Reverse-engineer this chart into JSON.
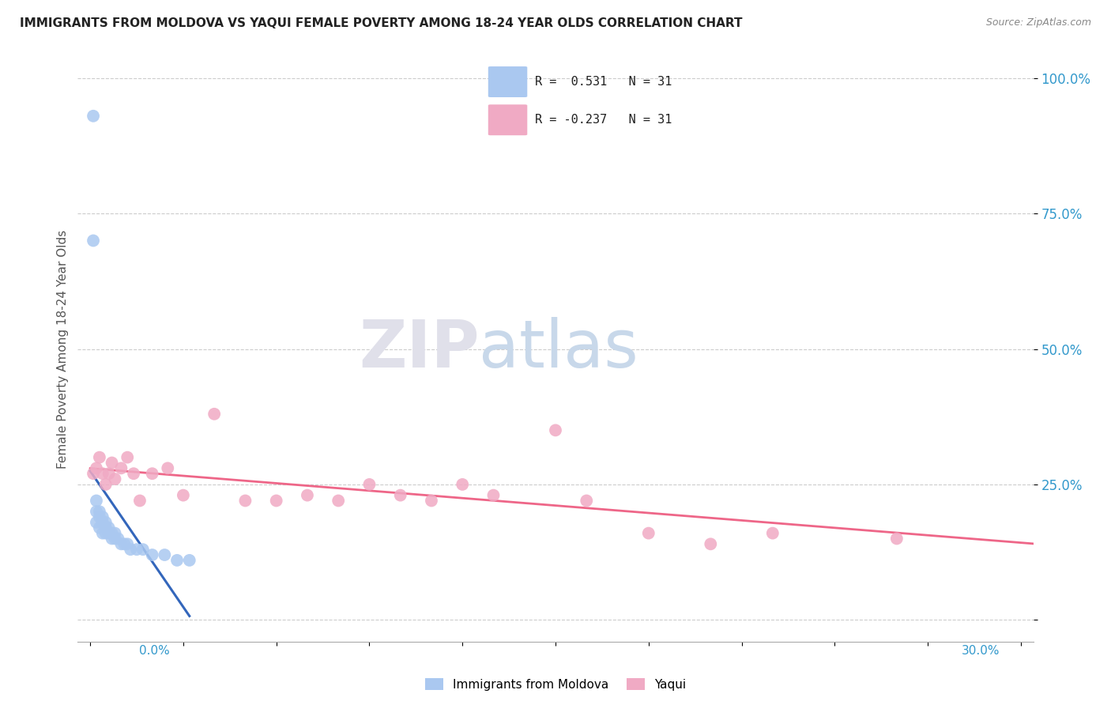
{
  "title": "IMMIGRANTS FROM MOLDOVA VS YAQUI FEMALE POVERTY AMONG 18-24 YEAR OLDS CORRELATION CHART",
  "source": "Source: ZipAtlas.com",
  "ylabel": "Female Poverty Among 18-24 Year Olds",
  "y_ticks": [
    0.0,
    0.25,
    0.5,
    0.75,
    1.0
  ],
  "y_tick_labels": [
    "",
    "25.0%",
    "50.0%",
    "75.0%",
    "100.0%"
  ],
  "legend_entry1": "R =  0.531   N = 31",
  "legend_entry2": "R = -0.237   N = 31",
  "legend_label1": "Immigrants from Moldova",
  "legend_label2": "Yaqui",
  "blue_color": "#aac8f0",
  "pink_color": "#f0aac4",
  "blue_line_color": "#3366bb",
  "pink_line_color": "#ee6688",
  "blue_scatter_x": [
    0.001,
    0.001,
    0.002,
    0.002,
    0.002,
    0.003,
    0.003,
    0.003,
    0.004,
    0.004,
    0.004,
    0.005,
    0.005,
    0.005,
    0.006,
    0.006,
    0.007,
    0.007,
    0.008,
    0.008,
    0.009,
    0.01,
    0.011,
    0.012,
    0.013,
    0.015,
    0.017,
    0.02,
    0.024,
    0.028,
    0.032
  ],
  "blue_scatter_y": [
    0.93,
    0.7,
    0.22,
    0.2,
    0.18,
    0.2,
    0.19,
    0.17,
    0.19,
    0.18,
    0.16,
    0.18,
    0.17,
    0.16,
    0.17,
    0.16,
    0.16,
    0.15,
    0.16,
    0.15,
    0.15,
    0.14,
    0.14,
    0.14,
    0.13,
    0.13,
    0.13,
    0.12,
    0.12,
    0.11,
    0.11
  ],
  "pink_scatter_x": [
    0.001,
    0.002,
    0.003,
    0.004,
    0.005,
    0.006,
    0.007,
    0.008,
    0.01,
    0.012,
    0.014,
    0.016,
    0.02,
    0.025,
    0.03,
    0.04,
    0.05,
    0.06,
    0.07,
    0.08,
    0.09,
    0.1,
    0.11,
    0.12,
    0.13,
    0.15,
    0.16,
    0.18,
    0.2,
    0.22,
    0.26
  ],
  "pink_scatter_y": [
    0.27,
    0.28,
    0.3,
    0.27,
    0.25,
    0.27,
    0.29,
    0.26,
    0.28,
    0.3,
    0.27,
    0.22,
    0.27,
    0.28,
    0.23,
    0.38,
    0.22,
    0.22,
    0.23,
    0.22,
    0.25,
    0.23,
    0.22,
    0.25,
    0.23,
    0.35,
    0.22,
    0.16,
    0.14,
    0.16,
    0.15
  ]
}
